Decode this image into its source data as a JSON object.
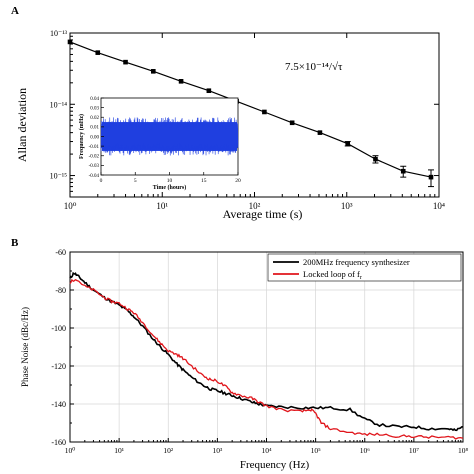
{
  "chart_data": [
    {
      "panel_label": "A",
      "type": "scatter",
      "title": "",
      "xlabel": "Average time (s)",
      "ylabel": "Allan deviation",
      "xscale": "log",
      "yscale": "log",
      "xlim": [
        1,
        10000
      ],
      "ylim": [
        5e-16,
        1e-13
      ],
      "x_tick_labels": [
        "10⁰",
        "10¹",
        "10²",
        "10³",
        "10⁴"
      ],
      "y_tick_labels": [
        "10⁻¹³",
        "10⁻¹⁴",
        "10⁻¹⁵"
      ],
      "annotation": "7.5×10⁻¹⁴/√τ",
      "grid": false,
      "series": [
        {
          "color": "#000000",
          "marker": "square",
          "x": [
            1,
            2,
            4,
            8,
            16,
            32,
            64,
            128,
            256,
            512,
            1024,
            2048,
            4096,
            8192
          ],
          "y": [
            7.5e-14,
            5.3e-14,
            3.9e-14,
            2.9e-14,
            2.1e-14,
            1.55e-14,
            1.1e-14,
            7.8e-15,
            5.5e-15,
            4e-15,
            2.8e-15,
            1.7e-15,
            1.15e-15,
            9.5e-16
          ],
          "error": [
            0,
            0,
            0,
            0,
            0,
            0,
            0,
            0,
            0,
            0,
            2e-16,
            2e-16,
            2e-16,
            2.5e-16
          ]
        }
      ],
      "inset": {
        "type": "line",
        "xlabel": "Time (hours)",
        "ylabel": "Frequency (mHz)",
        "xlim": [
          0,
          20
        ],
        "ylim": [
          -0.04,
          0.04
        ],
        "x_ticks": [
          0,
          5,
          10,
          15,
          20
        ],
        "y_ticks": [
          -0.04,
          -0.03,
          -0.02,
          -0.01,
          0.0,
          0.01,
          0.02,
          0.03,
          0.04
        ],
        "color": "#1f3fe0",
        "band": [
          -0.02,
          0.02
        ]
      }
    },
    {
      "panel_label": "B",
      "type": "line",
      "title": "",
      "xlabel": "Frequency (Hz)",
      "ylabel": "Phase Noise (dBc/Hz)",
      "xscale": "log",
      "xlim": [
        1,
        100000000
      ],
      "ylim": [
        -160,
        -60
      ],
      "x_tick_labels": [
        "10⁰",
        "10¹",
        "10²",
        "10³",
        "10⁴",
        "10⁵",
        "10⁶",
        "10⁷",
        "10⁸"
      ],
      "y_ticks": [
        -160,
        -140,
        -120,
        -100,
        -80,
        -60
      ],
      "grid": true,
      "legend_position": "top-right",
      "series": [
        {
          "name": "200MHz frequency synthesizer",
          "color": "#000000",
          "x": [
            1,
            1.2,
            1.5,
            2,
            3,
            5,
            7,
            10,
            15,
            20,
            30,
            50,
            70,
            100,
            150,
            200,
            300,
            500,
            700,
            1000,
            1500,
            2000,
            3000,
            5000,
            7000,
            10000,
            20000,
            50000,
            100000,
            200000,
            500000,
            1000000,
            2000000,
            5000000,
            10000000,
            20000000,
            50000000,
            70000000,
            100000000
          ],
          "y": [
            -74,
            -71,
            -73,
            -76,
            -80,
            -84,
            -86,
            -88,
            -91,
            -94,
            -99,
            -106,
            -110,
            -114,
            -119,
            -122,
            -126,
            -130,
            -132,
            -133,
            -134.5,
            -135.5,
            -137,
            -139,
            -140,
            -141,
            -141.5,
            -142,
            -142,
            -142,
            -143,
            -148,
            -151,
            -152,
            -152,
            -153,
            -153,
            -154,
            -152
          ]
        },
        {
          "name": "Locked loop of fr",
          "legend_subscript": "r",
          "color": "#e0151b",
          "x": [
            1,
            1.3,
            2,
            3,
            5,
            7,
            10,
            15,
            20,
            30,
            50,
            70,
            100,
            150,
            200,
            300,
            500,
            700,
            1000,
            1500,
            2000,
            3000,
            5000,
            7000,
            10000,
            20000,
            50000,
            80000,
            100000,
            130000,
            200000,
            500000,
            1000000,
            2000000,
            5000000,
            10000000,
            20000000,
            50000000,
            100000000
          ],
          "y": [
            -76,
            -74,
            -78,
            -80,
            -84,
            -86,
            -87,
            -90,
            -92,
            -97,
            -104,
            -108,
            -112,
            -114,
            -116,
            -120,
            -125,
            -127,
            -128,
            -131,
            -134,
            -135.5,
            -137,
            -139,
            -141,
            -143,
            -144,
            -143,
            -145,
            -150,
            -153,
            -155,
            -156,
            -156,
            -157,
            -157,
            -157.5,
            -157.5,
            -158
          ]
        }
      ]
    }
  ]
}
